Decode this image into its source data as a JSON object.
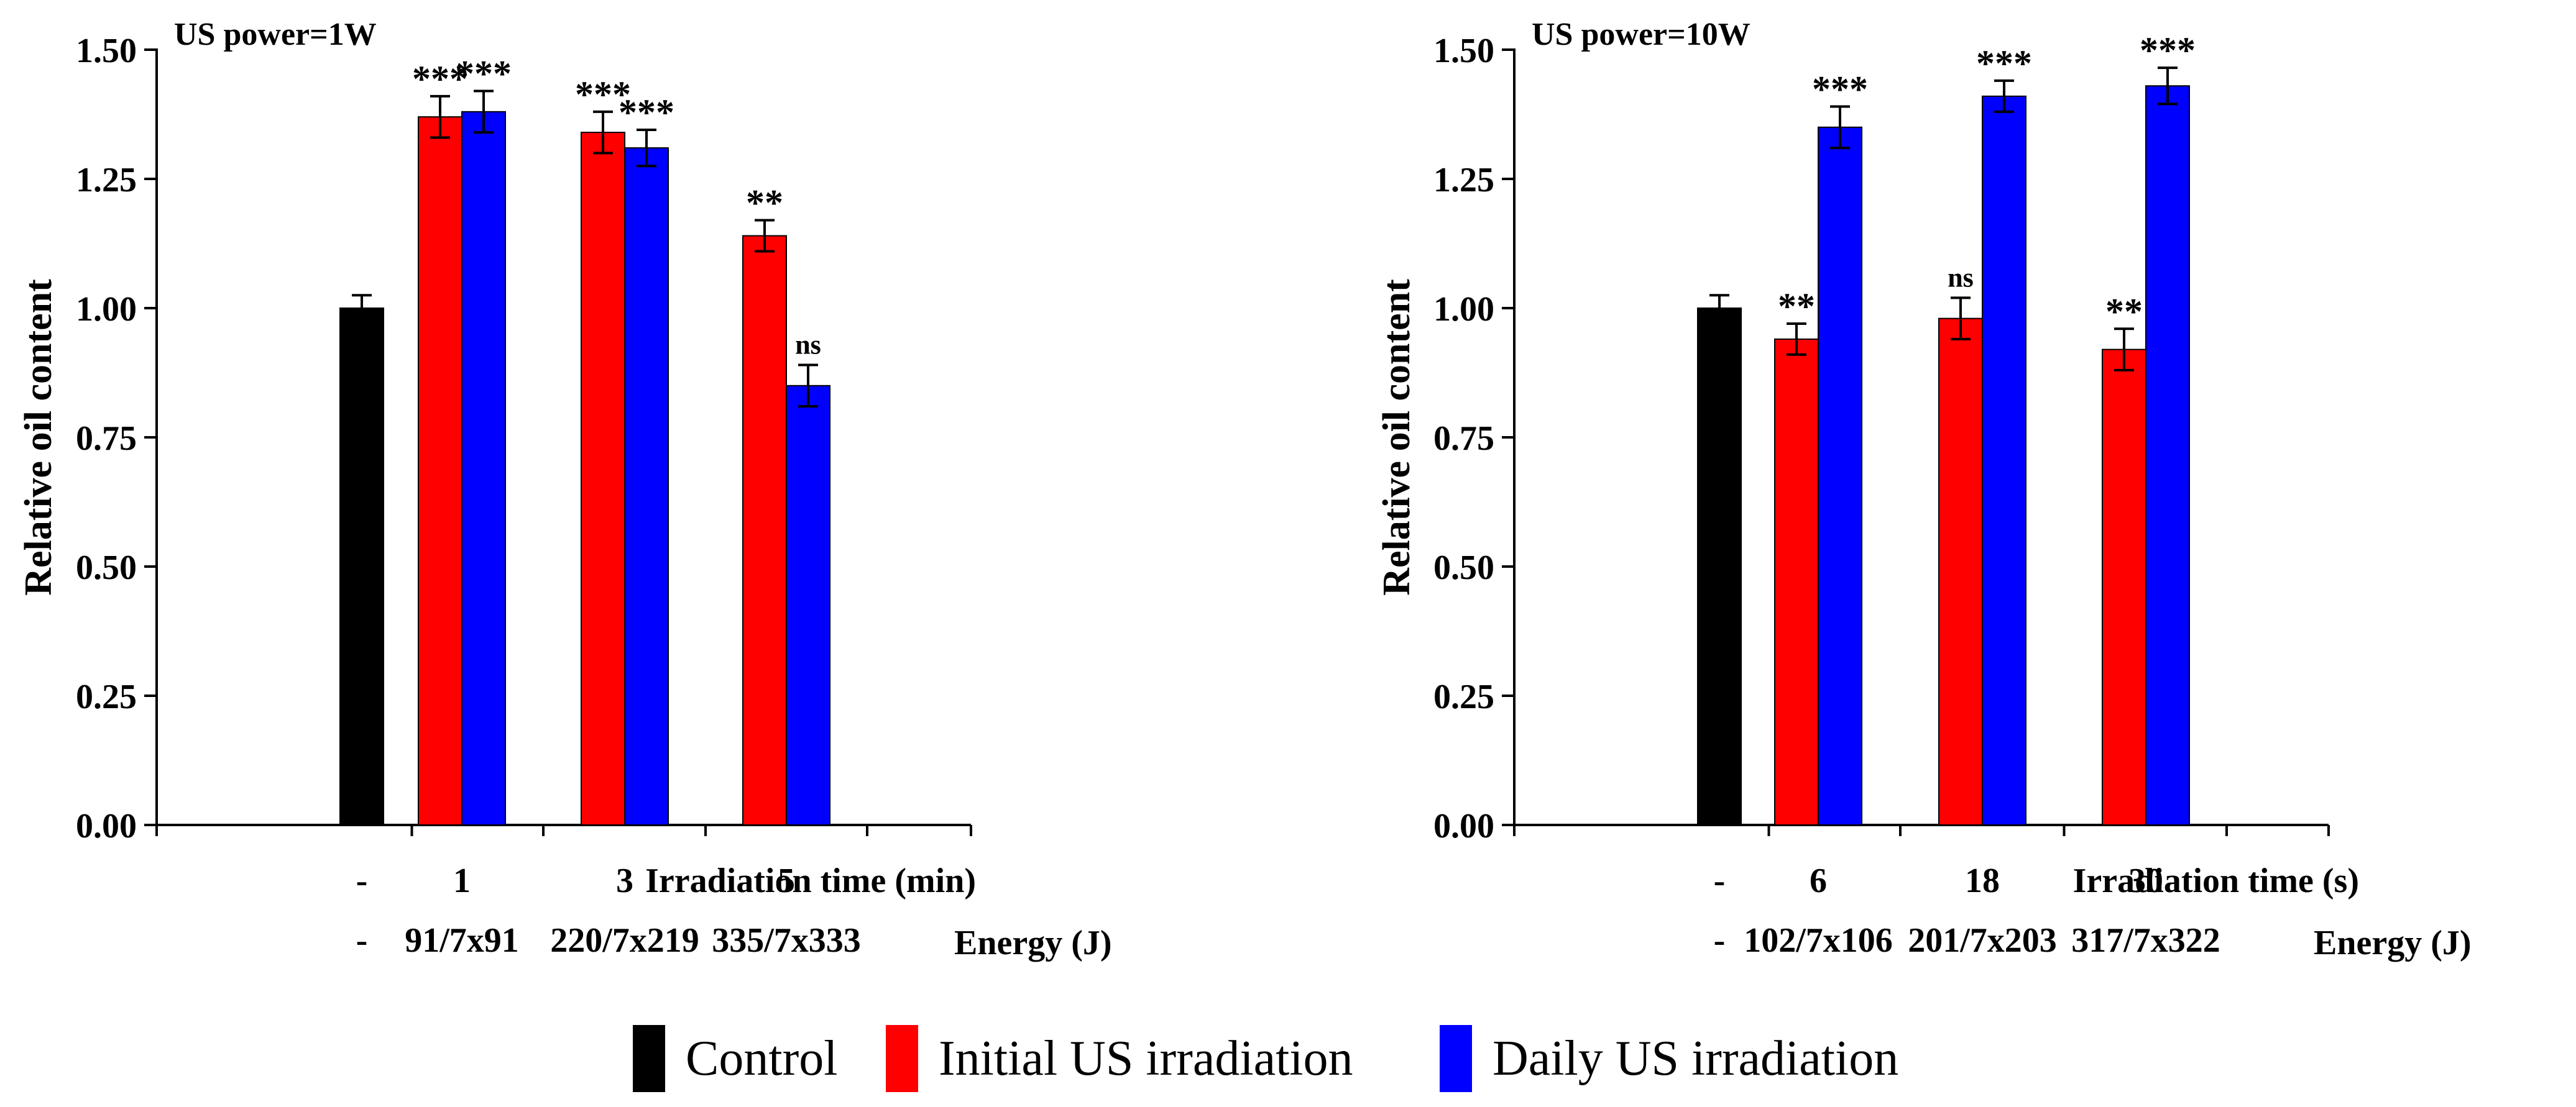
{
  "colors": {
    "control": "#000000",
    "initial": "#ff0000",
    "daily": "#0000ff",
    "axis": "#000000",
    "background": "#ffffff"
  },
  "legend": {
    "items": [
      {
        "label": "Control",
        "color": "#000000"
      },
      {
        "label": "Initial US irradiation",
        "color": "#ff0000"
      },
      {
        "label": "Daily US irradiation",
        "color": "#0000ff"
      }
    ]
  },
  "chart_data": [
    {
      "type": "bar",
      "title": "US power=1W",
      "ylabel": "Relative oil content",
      "xlabel": "Irradiation time (min)",
      "secondary_xlabel": "Energy (J)",
      "ylim": [
        0,
        1.5
      ],
      "yticks": [
        "0.00",
        "0.25",
        "0.50",
        "0.75",
        "1.00",
        "1.25",
        "1.50"
      ],
      "categories": [
        "-",
        "1",
        "3",
        "5"
      ],
      "energy_labels": [
        "-",
        "91/7x91",
        "220/7x219",
        "335/7x333"
      ],
      "series": [
        {
          "name": "Control",
          "values": [
            1.0,
            null,
            null,
            null
          ],
          "errors": [
            0.025,
            null,
            null,
            null
          ],
          "significance": [
            "",
            "",
            "",
            ""
          ]
        },
        {
          "name": "Initial US irradiation",
          "values": [
            null,
            1.37,
            1.34,
            1.14
          ],
          "errors": [
            null,
            0.04,
            0.04,
            0.03
          ],
          "significance": [
            "",
            "***",
            "***",
            "**"
          ]
        },
        {
          "name": "Daily US irradiation",
          "values": [
            null,
            1.38,
            1.31,
            0.85
          ],
          "errors": [
            null,
            0.04,
            0.035,
            0.04
          ],
          "significance": [
            "",
            "***",
            "***",
            "ns"
          ]
        }
      ]
    },
    {
      "type": "bar",
      "title": "US power=10W",
      "ylabel": "Relative oil content",
      "xlabel": "Irradiation time (s)",
      "secondary_xlabel": "Energy (J)",
      "ylim": [
        0,
        1.5
      ],
      "yticks": [
        "0.00",
        "0.25",
        "0.50",
        "0.75",
        "1.00",
        "1.25",
        "1.50"
      ],
      "categories": [
        "-",
        "6",
        "18",
        "30"
      ],
      "energy_labels": [
        "-",
        "102/7x106",
        "201/7x203",
        "317/7x322"
      ],
      "series": [
        {
          "name": "Control",
          "values": [
            1.0,
            null,
            null,
            null
          ],
          "errors": [
            0.025,
            null,
            null,
            null
          ],
          "significance": [
            "",
            "",
            "",
            ""
          ]
        },
        {
          "name": "Initial US irradiation",
          "values": [
            null,
            0.94,
            0.98,
            0.92
          ],
          "errors": [
            null,
            0.03,
            0.04,
            0.04
          ],
          "significance": [
            "",
            "**",
            "ns",
            "**"
          ]
        },
        {
          "name": "Daily US irradiation",
          "values": [
            null,
            1.35,
            1.41,
            1.43
          ],
          "errors": [
            null,
            0.04,
            0.03,
            0.035
          ],
          "significance": [
            "",
            "***",
            "***",
            "***"
          ]
        }
      ]
    }
  ]
}
